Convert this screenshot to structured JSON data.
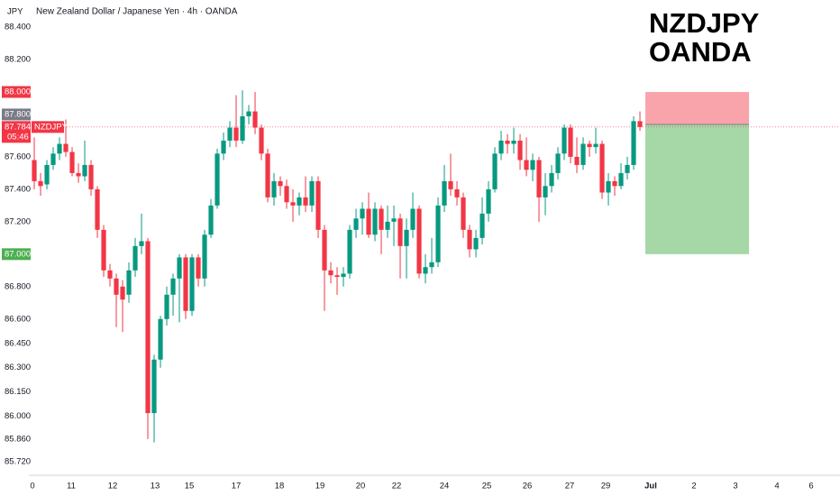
{
  "chart_data": {
    "type": "candlestick",
    "title": "New Zealand Dollar / Japanese Yen · 4h · OANDA",
    "currency": "JPY",
    "watermark": [
      "NZDJPY",
      "OANDA"
    ],
    "up_color": "#089981",
    "down_color": "#f23645",
    "grid": false,
    "open": [
      87.58,
      87.45,
      87.43,
      87.55,
      87.62,
      87.68,
      87.63,
      87.5,
      87.48,
      87.55,
      87.4,
      87.15,
      86.9,
      86.85,
      86.8,
      86.75,
      86.9,
      87.05,
      87.08,
      86.02,
      86.35,
      86.6,
      86.75,
      86.85,
      86.98,
      86.65,
      86.98,
      86.85,
      87.12,
      87.3,
      87.62,
      87.7,
      87.78,
      87.7,
      87.85,
      87.88,
      87.78,
      87.62,
      87.35,
      87.45,
      87.42,
      87.32,
      87.3,
      87.35,
      87.3,
      87.45,
      87.15,
      86.9,
      86.87,
      86.86,
      86.88,
      87.15,
      87.22,
      87.28,
      87.12,
      87.28,
      87.15,
      87.2,
      87.22,
      87.05,
      87.15,
      87.28,
      86.88,
      86.92,
      86.95,
      87.3,
      87.45,
      87.4,
      87.35,
      87.15,
      87.03,
      87.1,
      87.25,
      87.4,
      87.62,
      87.7,
      87.68,
      87.7,
      87.58,
      87.52,
      87.58,
      87.35,
      87.42,
      87.5,
      87.62,
      87.78,
      87.6,
      87.55,
      87.68,
      87.66,
      87.68,
      87.38,
      87.45,
      87.42,
      87.5,
      87.55,
      87.82
    ],
    "high": [
      87.72,
      87.5,
      87.58,
      87.66,
      87.72,
      87.83,
      87.66,
      87.56,
      87.7,
      87.58,
      87.42,
      87.18,
      86.94,
      86.88,
      86.84,
      86.95,
      87.1,
      87.25,
      87.1,
      86.38,
      86.62,
      86.8,
      86.88,
      87.0,
      87.0,
      87.0,
      87.0,
      87.15,
      87.34,
      87.65,
      87.75,
      87.82,
      87.98,
      88.01,
      87.92,
      88.0,
      87.8,
      87.65,
      87.5,
      87.48,
      87.46,
      87.4,
      87.38,
      87.48,
      87.48,
      87.48,
      87.18,
      86.95,
      86.92,
      86.92,
      87.18,
      87.28,
      87.32,
      87.38,
      87.32,
      87.3,
      87.3,
      87.3,
      87.25,
      87.22,
      87.38,
      87.3,
      87.0,
      87.1,
      87.35,
      87.55,
      87.62,
      87.45,
      87.38,
      87.18,
      87.15,
      87.35,
      87.45,
      87.66,
      87.76,
      87.74,
      87.78,
      87.74,
      87.72,
      87.62,
      87.6,
      87.5,
      87.55,
      87.66,
      87.8,
      87.8,
      87.72,
      87.72,
      87.7,
      87.78,
      87.7,
      87.5,
      87.48,
      87.56,
      87.6,
      87.85,
      87.88
    ],
    "low": [
      87.4,
      87.36,
      87.4,
      87.52,
      87.58,
      87.6,
      87.48,
      87.44,
      87.45,
      87.36,
      87.1,
      86.86,
      86.8,
      86.55,
      86.52,
      86.7,
      86.86,
      87.0,
      85.86,
      85.84,
      86.3,
      86.56,
      86.62,
      86.58,
      86.6,
      86.62,
      86.8,
      86.8,
      87.1,
      87.28,
      87.58,
      87.66,
      87.66,
      87.68,
      87.8,
      87.74,
      87.58,
      87.32,
      87.3,
      87.36,
      87.28,
      87.2,
      87.24,
      87.26,
      87.26,
      87.1,
      86.65,
      86.82,
      86.75,
      86.8,
      86.85,
      87.1,
      87.12,
      87.1,
      87.08,
      87.0,
      87.1,
      87.05,
      86.85,
      86.85,
      87.1,
      86.85,
      86.82,
      86.88,
      86.92,
      87.26,
      87.36,
      87.3,
      87.1,
      86.98,
      86.98,
      87.06,
      87.2,
      87.38,
      87.58,
      87.62,
      87.62,
      87.52,
      87.48,
      87.45,
      87.2,
      87.24,
      87.38,
      87.46,
      87.58,
      87.56,
      87.5,
      87.52,
      87.6,
      87.62,
      87.34,
      87.3,
      87.36,
      87.4,
      87.46,
      87.52,
      87.76
    ],
    "close": [
      87.45,
      87.42,
      87.55,
      87.62,
      87.68,
      87.63,
      87.5,
      87.48,
      87.55,
      87.4,
      87.15,
      86.9,
      86.85,
      86.75,
      86.72,
      86.9,
      87.05,
      87.08,
      86.02,
      86.35,
      86.6,
      86.75,
      86.85,
      86.98,
      86.65,
      86.98,
      86.85,
      87.12,
      87.3,
      87.62,
      87.7,
      87.78,
      87.7,
      87.85,
      87.88,
      87.78,
      87.62,
      87.35,
      87.45,
      87.42,
      87.32,
      87.3,
      87.35,
      87.3,
      87.45,
      87.15,
      86.9,
      86.87,
      86.86,
      86.88,
      87.15,
      87.22,
      87.28,
      87.12,
      87.28,
      87.15,
      87.2,
      87.22,
      87.05,
      87.15,
      87.28,
      86.88,
      86.92,
      86.95,
      87.3,
      87.45,
      87.4,
      87.35,
      87.15,
      87.03,
      87.1,
      87.25,
      87.4,
      87.62,
      87.7,
      87.68,
      87.7,
      87.58,
      87.52,
      87.58,
      87.35,
      87.42,
      87.5,
      87.62,
      87.78,
      87.6,
      87.55,
      87.68,
      87.66,
      87.68,
      87.38,
      87.45,
      87.42,
      87.5,
      87.55,
      87.82,
      87.784
    ],
    "last_price": 87.784,
    "last_price_symbol": "NZDJPY",
    "countdown": "05:46",
    "position": {
      "stop": 88.0,
      "stop_label": "88.000",
      "entry": 87.8,
      "entry_label": "87.800",
      "target": 87.0,
      "target_label": "87.000",
      "x_range": [
        96.86,
        113.29
      ]
    },
    "ylim": [
      85.648,
      88.567
    ],
    "yticks": [
      {
        "value": 88.4,
        "label": "88.400"
      },
      {
        "value": 88.2,
        "label": "88.200"
      },
      {
        "value": 87.6,
        "label": "87.600"
      },
      {
        "value": 87.4,
        "label": "87.400"
      },
      {
        "value": 87.2,
        "label": "87.200"
      },
      {
        "value": 86.8,
        "label": "86.800"
      },
      {
        "value": 86.6,
        "label": "86.600"
      },
      {
        "value": 86.45,
        "label": "86.450"
      },
      {
        "value": 86.3,
        "label": "86.300"
      },
      {
        "value": 86.15,
        "label": "86.150"
      },
      {
        "value": 86.0,
        "label": "86.000"
      },
      {
        "value": 85.86,
        "label": "85.860"
      },
      {
        "value": 85.72,
        "label": "85.720"
      }
    ],
    "xlim": [
      -0.86,
      127.71
    ],
    "xticks": [
      {
        "value": -0.29,
        "label": "0"
      },
      {
        "value": 5.86,
        "label": "11"
      },
      {
        "value": 12.43,
        "label": "12"
      },
      {
        "value": 19.14,
        "label": "13"
      },
      {
        "value": 24.57,
        "label": "15"
      },
      {
        "value": 32,
        "label": "17"
      },
      {
        "value": 38.86,
        "label": "18"
      },
      {
        "value": 45.29,
        "label": "19"
      },
      {
        "value": 51.71,
        "label": "20"
      },
      {
        "value": 57.43,
        "label": "22"
      },
      {
        "value": 65,
        "label": "24"
      },
      {
        "value": 71.71,
        "label": "25"
      },
      {
        "value": 78.14,
        "label": "26"
      },
      {
        "value": 84.86,
        "label": "27"
      },
      {
        "value": 90.57,
        "label": "29"
      },
      {
        "value": 97.71,
        "label": "Jul"
      },
      {
        "value": 104.57,
        "label": "2"
      },
      {
        "value": 111.14,
        "label": "3"
      },
      {
        "value": 117.71,
        "label": "4"
      },
      {
        "value": 123.14,
        "label": "6"
      }
    ]
  }
}
